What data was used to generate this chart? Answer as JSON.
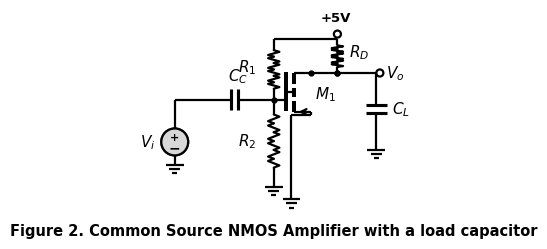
{
  "title": "Figure 2. Common Source NMOS Amplifier with a load capacitor",
  "title_fontsize": 10.5,
  "bg_color": "#ffffff",
  "line_color": "#000000",
  "line_width": 1.6,
  "component_labels": {
    "R1": "$R_1$",
    "R2": "$R_2$",
    "RD": "$R_D$",
    "CC": "$C_C$",
    "CL": "$C_L$",
    "M1": "$M_1$",
    "Vi": "$V_i$",
    "Vo": "$V_o$",
    "VDD": "+5V"
  }
}
